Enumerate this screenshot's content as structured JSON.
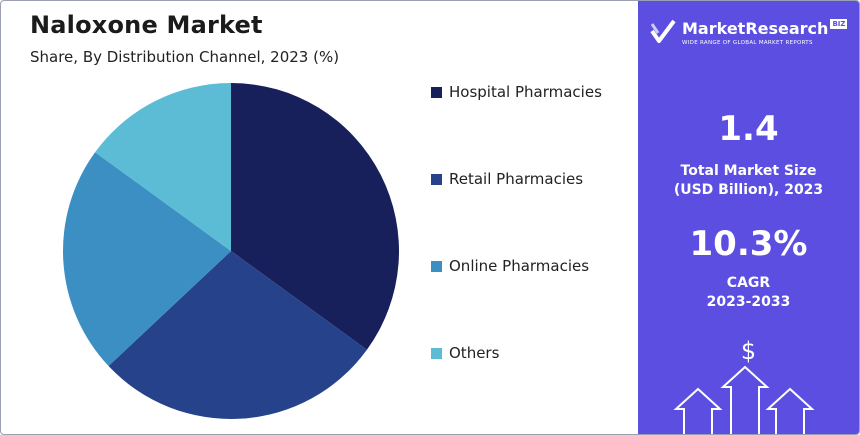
{
  "header": {
    "title": "Naloxone Market",
    "subtitle": "Share, By Distribution Channel, 2023 (%)"
  },
  "chart_data": {
    "type": "pie",
    "title": "Naloxone Market",
    "subtitle": "Share, By Distribution Channel, 2023 (%)",
    "categories": [
      "Hospital Pharmacies",
      "Retail Pharmacies",
      "Online Pharmacies",
      "Others"
    ],
    "values": [
      35,
      28,
      22,
      15
    ],
    "colors": [
      "#18205c",
      "#25428a",
      "#3b8fc2",
      "#5cbcd6"
    ],
    "legend_position": "right"
  },
  "panel": {
    "brand_name": "MarketResearch",
    "brand_suffix": "BIZ",
    "brand_tagline": "WIDE RANGE OF GLOBAL MARKET REPORTS",
    "market_size_value": "1.4",
    "market_size_label_line1": "Total Market Size",
    "market_size_label_line2": "(USD Billion), 2023",
    "cagr_value": "10.3%",
    "cagr_label_line1": "CAGR",
    "cagr_label_line2": "2023-2033",
    "dollar_symbol": "$",
    "background_color": "#5b4ee0"
  }
}
